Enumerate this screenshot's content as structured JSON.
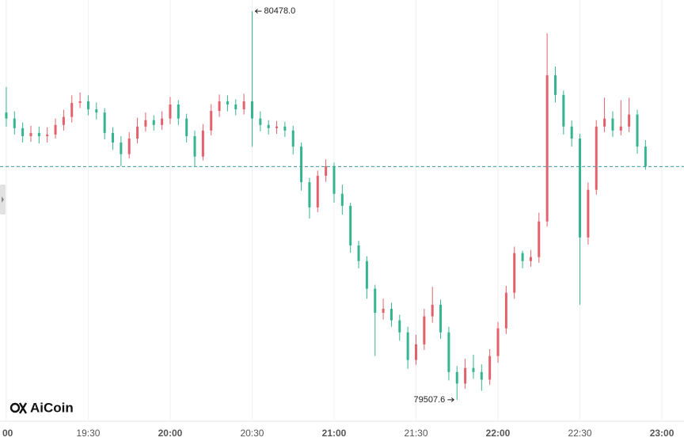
{
  "chart_data": {
    "type": "candlestick",
    "x": [
      0,
      3,
      6,
      9,
      12,
      15,
      18,
      21,
      24,
      27,
      30,
      33,
      36,
      39,
      42,
      45,
      48,
      51,
      54,
      57,
      60,
      63,
      66,
      69,
      72,
      75,
      78,
      81,
      84,
      87,
      90,
      93,
      96,
      99,
      102,
      105,
      108,
      111,
      114,
      117,
      120,
      123,
      126,
      129,
      132,
      135,
      138,
      141,
      144,
      147,
      150,
      153,
      156,
      159,
      162,
      165,
      168,
      171,
      174,
      177,
      180,
      183,
      186,
      189,
      192,
      195,
      198,
      201,
      204,
      207,
      210,
      213,
      216,
      219,
      222,
      225,
      228,
      231,
      234
    ],
    "open": [
      80225,
      80210,
      80186,
      80166,
      80174,
      80166,
      80170,
      80194,
      80214,
      80249,
      80253,
      80233,
      80225,
      80174,
      80150,
      80121,
      80160,
      80190,
      80206,
      80194,
      80210,
      80245,
      80210,
      80166,
      80115,
      80180,
      80229,
      80253,
      80245,
      80233,
      80253,
      80210,
      80194,
      80186,
      80190,
      80180,
      80140,
      80051,
      79988,
      80067,
      80091,
      80022,
      79992,
      79893,
      79854,
      79785,
      79725,
      79735,
      79706,
      79676,
      79607,
      79646,
      79716,
      79745,
      79676,
      79577,
      79548,
      79587,
      79577,
      79558,
      79617,
      79686,
      79775,
      79874,
      79854,
      79864,
      79953,
      80318,
      80269,
      80190,
      80160,
      79913,
      80032,
      80190,
      80210,
      80180,
      80190,
      80220,
      80140
    ],
    "high": [
      80289,
      80228,
      80200,
      80192,
      80190,
      80188,
      80210,
      80232,
      80268,
      80275,
      80268,
      80250,
      80236,
      80188,
      80166,
      80176,
      80212,
      80225,
      80218,
      80228,
      80264,
      80256,
      80222,
      80180,
      80196,
      80246,
      80270,
      80268,
      80258,
      80272,
      80478.0,
      80228,
      80206,
      80204,
      80202,
      80192,
      80150,
      80062,
      80080,
      80108,
      80100,
      80045,
      80000,
      79905,
      79866,
      79795,
      79760,
      79750,
      79720,
      79690,
      79670,
      79735,
      79790,
      79758,
      79690,
      79592,
      79610,
      79620,
      79596,
      79634,
      79702,
      79792,
      79890,
      79880,
      79882,
      79975,
      80423,
      80340,
      80280,
      80205,
      80172,
      80050,
      80206,
      80262,
      80228,
      80256,
      80262,
      80232,
      80156
    ],
    "low": [
      80190,
      80170,
      80150,
      80152,
      80148,
      80150,
      80160,
      80180,
      80200,
      80236,
      80218,
      80208,
      80158,
      80132,
      80091,
      80110,
      80148,
      80178,
      80180,
      80182,
      80196,
      80194,
      80150,
      80091,
      80105,
      80168,
      80214,
      80228,
      80218,
      80220,
      80140,
      80178,
      80170,
      80172,
      80164,
      80120,
      80030,
      79960,
      79976,
      80052,
      80000,
      79970,
      79875,
      79836,
      79760,
      79617,
      79708,
      79690,
      79655,
      79585,
      79595,
      79632,
      79700,
      79660,
      79556,
      79507.6,
      79535,
      79560,
      79530,
      79545,
      79600,
      79672,
      79760,
      79836,
      79840,
      79850,
      79940,
      80250,
      80170,
      80140,
      79745,
      79895,
      80020,
      80176,
      80164,
      80168,
      80176,
      80122,
      80082
    ],
    "close": [
      80210,
      80186,
      80166,
      80174,
      80166,
      80170,
      80194,
      80214,
      80249,
      80253,
      80233,
      80225,
      80174,
      80150,
      80121,
      80160,
      80190,
      80206,
      80194,
      80210,
      80245,
      80210,
      80166,
      80115,
      80180,
      80229,
      80253,
      80245,
      80233,
      80253,
      80210,
      80194,
      80186,
      80190,
      80180,
      80140,
      80051,
      79988,
      80067,
      80091,
      80022,
      79992,
      79893,
      79854,
      79785,
      79725,
      79735,
      79706,
      79676,
      79607,
      79646,
      79716,
      79745,
      79676,
      79577,
      79548,
      79587,
      79577,
      79558,
      79617,
      79686,
      79775,
      79874,
      79854,
      79864,
      79953,
      80318,
      80269,
      80190,
      80160,
      79913,
      80032,
      80190,
      80210,
      80180,
      80190,
      80220,
      80140,
      80090
    ],
    "up_color": "#e4606b",
    "down_color": "#34b58f",
    "last_line_color": "#3a9a9a",
    "grid": true,
    "xlim": [
      -2.3,
      248.1
    ],
    "ylim": [
      79458,
      80506
    ],
    "xticks": [
      {
        "value": 0,
        "label": "00"
      },
      {
        "value": 30,
        "label": "19:30"
      },
      {
        "value": 60,
        "label": "20:00"
      },
      {
        "value": 90,
        "label": "20:30"
      },
      {
        "value": 120,
        "label": "21:00"
      },
      {
        "value": 150,
        "label": "21:30"
      },
      {
        "value": 180,
        "label": "22:00"
      },
      {
        "value": 210,
        "label": "22:30"
      },
      {
        "value": 240,
        "label": "23:00"
      }
    ],
    "high_label": "80478.0",
    "low_label": "79507.6",
    "watermark": "AiCoin"
  }
}
